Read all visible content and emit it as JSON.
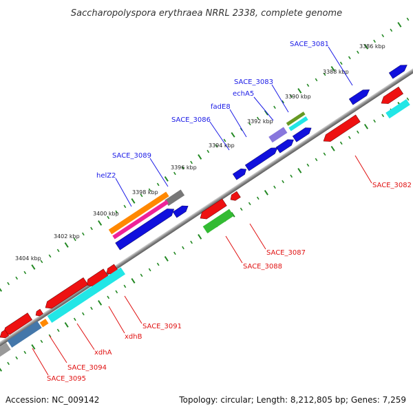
{
  "title": "Saccharopolyspora erythraea NRRL 2338, complete genome",
  "footer": {
    "accession": "Accession: NC_009142",
    "topology": "Topology: circular; Length: 8,212,805 bp; Genes: 7,259"
  },
  "kbp_labels": [
    "3386 kbp",
    "3388 kbp",
    "3390 kbp",
    "3392 kbp",
    "3394 kbp",
    "3396 kbp",
    "3398 kbp",
    "3400 kbp",
    "3402 kbp",
    "3404 kbp"
  ],
  "forward_genes": [
    "SACE_3081",
    "SACE_3083",
    "echA5",
    "fadE8",
    "SACE_3086",
    "SACE_3089",
    "helZ2"
  ],
  "reverse_genes": [
    "SACE_3082",
    "SACE_3087",
    "SACE_3088",
    "SACE_3091",
    "xdhB",
    "xdhA",
    "SACE_3094",
    "SACE_3095"
  ],
  "colors": {
    "forward_feature": "#1010dd",
    "reverse_feature": "#ee1111",
    "forward_label": "#1a1ae6",
    "reverse_label": "#e01010",
    "backbone": "#888888",
    "tick": "#228822",
    "cyan_feature": "#22e6e6",
    "green_feature": "#33bb33",
    "orange_feature": "#ff8800",
    "magenta_feature": "#ee2299",
    "gray_feature": "#777777",
    "lavender_feature": "#8877dd",
    "olive_feature": "#669922",
    "steel_feature": "#4477aa"
  }
}
